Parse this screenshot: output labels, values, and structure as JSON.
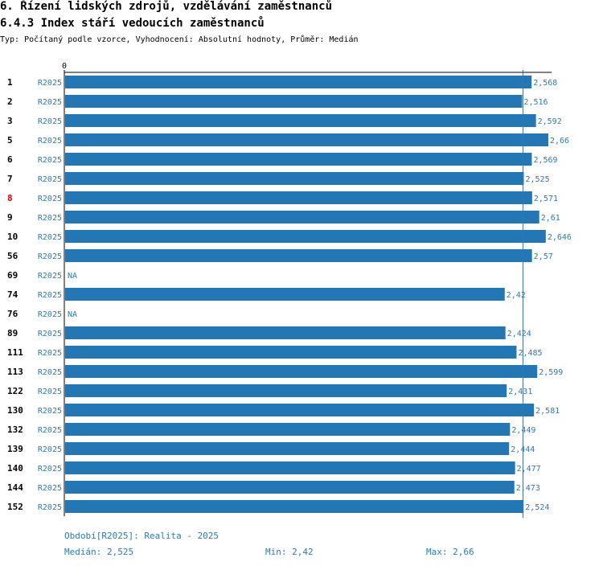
{
  "header": {
    "title": "6. Řízení lidských zdrojů, vzdělávání zaměstnanců",
    "subtitle": "6.4.3 Index stáří vedoucích zaměstnanců",
    "meta": "Typ: Počítaný podle vzorce, Vyhodnocení: Absolutní hodnoty, Průměr: Medián"
  },
  "colors": {
    "bar": "#2277b4",
    "label_blue": "#2a7ab5",
    "highlight_red": "#e00000",
    "axis": "#000000"
  },
  "chart_data": {
    "type": "bar",
    "orientation": "horizontal",
    "axis_zero_label": "0",
    "series_label": "R2025",
    "highlight_category": "8",
    "median_line": 2.525,
    "xlim": [
      0,
      2.66
    ],
    "categories": [
      "1",
      "2",
      "3",
      "5",
      "6",
      "7",
      "8",
      "9",
      "10",
      "56",
      "69",
      "74",
      "76",
      "89",
      "111",
      "113",
      "122",
      "130",
      "132",
      "139",
      "140",
      "144",
      "152"
    ],
    "values": [
      2.568,
      2.516,
      2.592,
      2.66,
      2.569,
      2.525,
      2.571,
      2.61,
      2.646,
      2.57,
      null,
      2.42,
      null,
      2.424,
      2.485,
      2.599,
      2.431,
      2.581,
      2.449,
      2.444,
      2.477,
      2.473,
      2.524
    ],
    "value_labels": [
      "2,568",
      "2,516",
      "2,592",
      "2,66",
      "2,569",
      "2,525",
      "2,571",
      "2,61",
      "2,646",
      "2,57",
      "NA",
      "2,42",
      "NA",
      "2,424",
      "2,485",
      "2,599",
      "2,431",
      "2,581",
      "2,449",
      "2,444",
      "2,477",
      "2,473",
      "2,524"
    ]
  },
  "footer": {
    "period": "Období[R2025]: Realita - 2025",
    "median_label": "Medián:",
    "median_value": "2,525",
    "min_label": "Min:",
    "min_value": "2,42",
    "max_label": "Max:",
    "max_value": "2,66"
  }
}
